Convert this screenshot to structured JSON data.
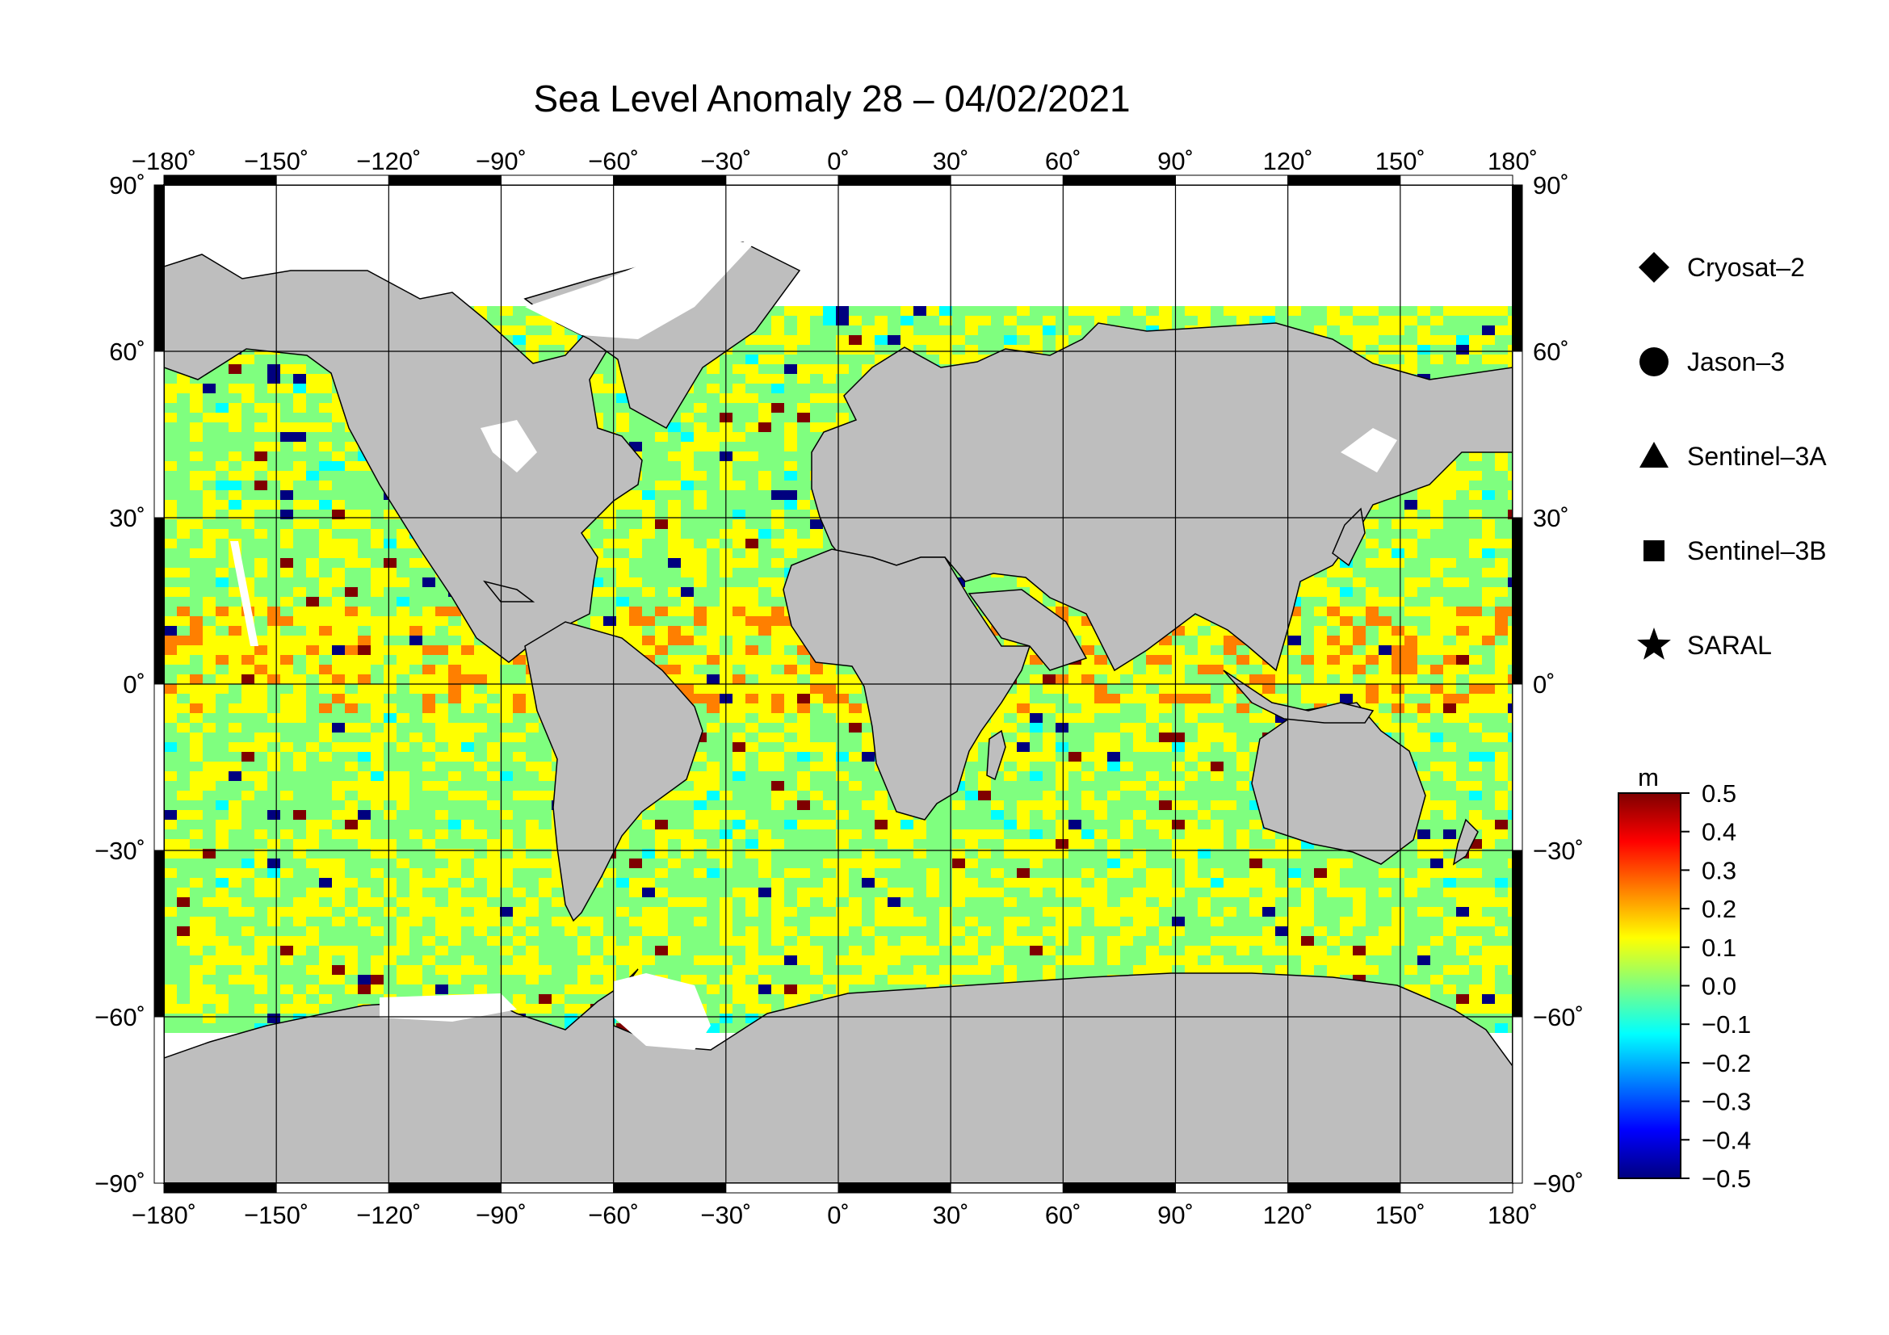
{
  "title": "Sea Level Anomaly 28 – 04/02/2021",
  "map": {
    "projection": "equirectangular",
    "lon_range": [
      -180,
      180
    ],
    "lat_range": [
      -90,
      90
    ],
    "land_color": "#bebebe",
    "no_data_color": "#ffffff",
    "gridlines": true,
    "lon_ticks": [
      "−180˚",
      "−150˚",
      "−120˚",
      "−90˚",
      "−60˚",
      "−30˚",
      "0˚",
      "30˚",
      "60˚",
      "90˚",
      "120˚",
      "150˚",
      "180˚"
    ],
    "lat_ticks": [
      "90˚",
      "60˚",
      "30˚",
      "0˚",
      "−30˚",
      "−60˚",
      "−90˚"
    ]
  },
  "legend": {
    "placement": "right",
    "items": [
      {
        "label": "Cryosat–2",
        "marker": "diamond"
      },
      {
        "label": "Jason–3",
        "marker": "circle"
      },
      {
        "label": "Sentinel–3A",
        "marker": "triangle"
      },
      {
        "label": "Sentinel–3B",
        "marker": "square"
      },
      {
        "label": "SARAL",
        "marker": "star"
      }
    ]
  },
  "colorbar": {
    "unit": "m",
    "range": [
      -0.5,
      0.5
    ],
    "tick_labels": [
      "0.5",
      "0.4",
      "0.3",
      "0.2",
      "0.1",
      "0.0",
      "−0.1",
      "−0.2",
      "−0.3",
      "−0.4",
      "−0.5"
    ],
    "colors": [
      "#00007f",
      "#0000ff",
      "#007fff",
      "#00ffff",
      "#7fff7f",
      "#ffff00",
      "#ff7f00",
      "#ff0000",
      "#7f0000"
    ]
  }
}
